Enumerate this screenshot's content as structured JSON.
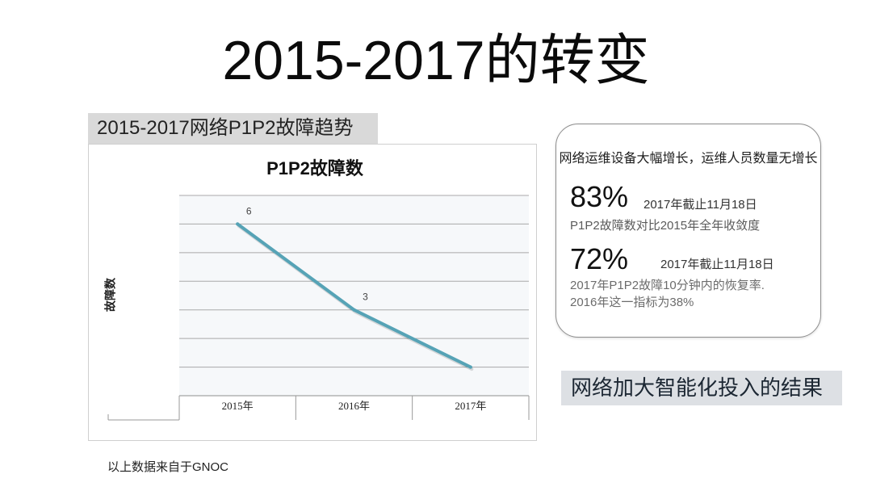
{
  "slide": {
    "title": "2015-2017的转变",
    "footer_note": "以上数据来自于GNOC"
  },
  "chart_panel": {
    "header": "2015-2017网络P1P2故障趋势"
  },
  "chart_data": {
    "type": "line",
    "title": "P1P2故障数",
    "xlabel": "",
    "ylabel": "故障数",
    "categories": [
      "2015年",
      "2016年",
      "2017年"
    ],
    "series": [
      {
        "values": [
          6,
          3,
          1
        ],
        "data_labels": [
          "6",
          "3"
        ]
      }
    ],
    "ylim": [
      0,
      7
    ],
    "grid": true,
    "legend": "none"
  },
  "stats_panel": {
    "headline": "网络运维设备大幅增长，运维人员数量无增长",
    "stats": [
      {
        "value": "83%",
        "date": "2017年截止11月18日",
        "description": [
          "P1P2故障数对比2015年全年收敛度"
        ]
      },
      {
        "value": "72%",
        "date": "2017年截止11月18日",
        "description": [
          "2017年P1P2故障10分钟内的恢复率.",
          "2016年这一指标为38%"
        ]
      }
    ]
  },
  "conclusion": "网络加大智能化投入的结果",
  "colors": {
    "series_line": "#56a3b6",
    "plot_background": "#f6f8fa",
    "header_background": "#d9d9d9",
    "conclusion_background": "#dde0e4"
  }
}
